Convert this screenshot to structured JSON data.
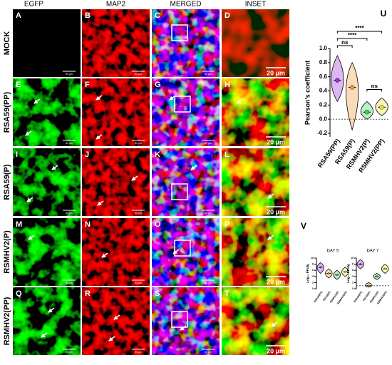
{
  "columns": [
    "EGFP",
    "MAP2",
    "MERGED",
    "INSET"
  ],
  "rows": [
    "MOCK",
    "RSA59(PP)",
    "RSA59(P)",
    "RSMHV2(P)",
    "RSMHV2(PP)"
  ],
  "panel_letters": [
    [
      "A",
      "B",
      "C",
      "D"
    ],
    [
      "E",
      "F",
      "G",
      "H"
    ],
    [
      "I",
      "J",
      "K",
      "L"
    ],
    [
      "M",
      "N",
      "O",
      "P"
    ],
    [
      "Q",
      "R",
      "S",
      "T"
    ]
  ],
  "scale_bars": {
    "image": "50 µm",
    "inset": "20 µm"
  },
  "chart_data": [
    {
      "type": "violin",
      "panel": "U",
      "y_label": "Pearson's coefficient",
      "categories": [
        "RSA59(PP)",
        "RSA59(P)",
        "RSMHV2(P)",
        "RSMHV2(PP)"
      ],
      "colors": [
        "#9b30d9",
        "#f39c34",
        "#3ecf5a",
        "#f2e03a"
      ],
      "mins": [
        0.25,
        -0.15,
        0,
        0.05
      ],
      "medians": [
        0.55,
        0.45,
        0.1,
        0.17
      ],
      "maxs": [
        0.9,
        0.8,
        0.25,
        0.3
      ],
      "ylim": [
        -0.25,
        1.0
      ],
      "yticks": [
        -0.2,
        {
          "value": 0,
          "label": "0.0"
        },
        0.2,
        0.4,
        0.6,
        0.8,
        {
          "value": 1,
          "label": "1.0"
        }
      ],
      "reference_line": 0,
      "annotations": [
        {
          "text": "****",
          "groups": [
            0,
            3
          ]
        },
        {
          "text": "****",
          "groups": [
            0,
            2
          ]
        },
        {
          "text": "ns",
          "groups": [
            0,
            1
          ]
        },
        {
          "text": "ns",
          "groups": [
            2,
            3
          ]
        }
      ]
    },
    {
      "type": "violin",
      "panel": "V",
      "title": "DAY 5",
      "y_label": "Log₁₀ PFU/g",
      "categories": [
        "RSA59(PP)",
        "RSA59(P)",
        "RSMHV2(P)",
        "RSMHV2(PP)"
      ],
      "colors": [
        "#9b30d9",
        "#f39c34",
        "#3ecf5a",
        "#f2e03a"
      ],
      "mins": [
        5,
        3.5,
        3,
        4
      ],
      "medians": [
        7,
        5,
        4.5,
        5.5
      ],
      "maxs": [
        8.5,
        6.5,
        6,
        7
      ],
      "ylim": [
        0,
        10
      ],
      "yticks": [
        0,
        2,
        4,
        6,
        8,
        10
      ]
    },
    {
      "type": "violin",
      "title": "DAY 7",
      "y_label": "Log₁₀ PFU/g",
      "categories": [
        "RSA59(PP)",
        "RSA59(P)",
        "RSMHV2(P)",
        "RSMHV2(PP)"
      ],
      "colors": [
        "#9b30d9",
        "#f39c34",
        "#3ecf5a",
        "#f2e03a"
      ],
      "mins": [
        6.5,
        0.5,
        3,
        5
      ],
      "medians": [
        8,
        1,
        4,
        6.5
      ],
      "maxs": [
        9.5,
        2,
        5,
        8
      ],
      "ylim": [
        0,
        10
      ],
      "yticks": [
        0,
        2,
        4,
        6,
        8,
        10
      ],
      "reference_line": 1
    }
  ]
}
